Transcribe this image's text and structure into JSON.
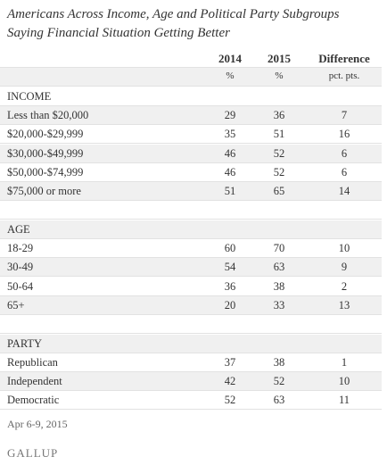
{
  "title": [
    "Americans Across Income, Age and Political Party Subgroups",
    "Saying Financial Situation Getting Better"
  ],
  "table": {
    "columns": [
      "2014",
      "2015",
      "Difference"
    ],
    "units": [
      "%",
      "%",
      "pct. pts."
    ],
    "sections": [
      {
        "label": "INCOME",
        "rows": [
          [
            "Less than $20,000",
            29,
            36,
            7
          ],
          [
            "$20,000-$29,999",
            35,
            51,
            16
          ],
          [
            "$30,000-$49,999",
            46,
            52,
            6
          ],
          [
            "$50,000-$74,999",
            46,
            52,
            6
          ],
          [
            "$75,000 or more",
            51,
            65,
            14
          ]
        ]
      },
      {
        "label": "AGE",
        "rows": [
          [
            "18-29",
            60,
            70,
            10
          ],
          [
            "30-49",
            54,
            63,
            9
          ],
          [
            "50-64",
            36,
            38,
            2
          ],
          [
            "65+",
            20,
            33,
            13
          ]
        ]
      },
      {
        "label": "PARTY",
        "rows": [
          [
            "Republican",
            37,
            38,
            1
          ],
          [
            "Independent",
            42,
            52,
            10
          ],
          [
            "Democratic",
            52,
            63,
            11
          ]
        ]
      }
    ]
  },
  "footer": {
    "date": "Apr 6-9, 2015",
    "source": "GALLUP"
  }
}
